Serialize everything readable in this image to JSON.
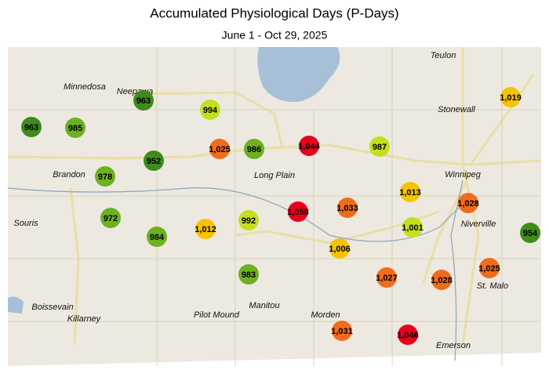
{
  "header": {
    "title": "Accumulated Physiological Days (P-Days)",
    "subtitle": "June 1 - Oct 29, 2025"
  },
  "places": [
    "Teulon",
    "Minnedosa",
    "Neepawa",
    "Stonewall",
    "Winnipeg",
    "Brandon",
    "Long Plain",
    "Souris",
    "Niverville",
    "St. Malo",
    "Boissevain",
    "Killarney",
    "Pilot Mound",
    "Manitou",
    "Morden",
    "Emerson"
  ],
  "stations": [
    {
      "label": "963",
      "color": "#3d8c1c"
    },
    {
      "label": "985",
      "color": "#6cb11f"
    },
    {
      "label": "963",
      "color": "#3d8c1c"
    },
    {
      "label": "994",
      "color": "#c5df1d"
    },
    {
      "label": "952",
      "color": "#3d8c1c"
    },
    {
      "label": "1,025",
      "color": "#f06c1c"
    },
    {
      "label": "986",
      "color": "#6cb11f"
    },
    {
      "label": "1,044",
      "color": "#e8001c"
    },
    {
      "label": "987",
      "color": "#c5df1d"
    },
    {
      "label": "1,019",
      "color": "#f7c300"
    },
    {
      "label": "978",
      "color": "#6cb11f"
    },
    {
      "label": "972",
      "color": "#6cb11f"
    },
    {
      "label": "984",
      "color": "#6cb11f"
    },
    {
      "label": "1,012",
      "color": "#f7c300"
    },
    {
      "label": "992",
      "color": "#c5df1d"
    },
    {
      "label": "1,058",
      "color": "#e8001c"
    },
    {
      "label": "1,033",
      "color": "#f06c1c"
    },
    {
      "label": "1,013",
      "color": "#f7c300"
    },
    {
      "label": "1,028",
      "color": "#f06c1c"
    },
    {
      "label": "1,001",
      "color": "#c5df1d"
    },
    {
      "label": "954",
      "color": "#3d8c1c"
    },
    {
      "label": "1,006",
      "color": "#f7c300"
    },
    {
      "label": "983",
      "color": "#6cb11f"
    },
    {
      "label": "1,027",
      "color": "#f06c1c"
    },
    {
      "label": "1,028",
      "color": "#f06c1c"
    },
    {
      "label": "1,025",
      "color": "#f06c1c"
    },
    {
      "label": "1,031",
      "color": "#f06c1c"
    },
    {
      "label": "1,046",
      "color": "#e8001c"
    }
  ]
}
